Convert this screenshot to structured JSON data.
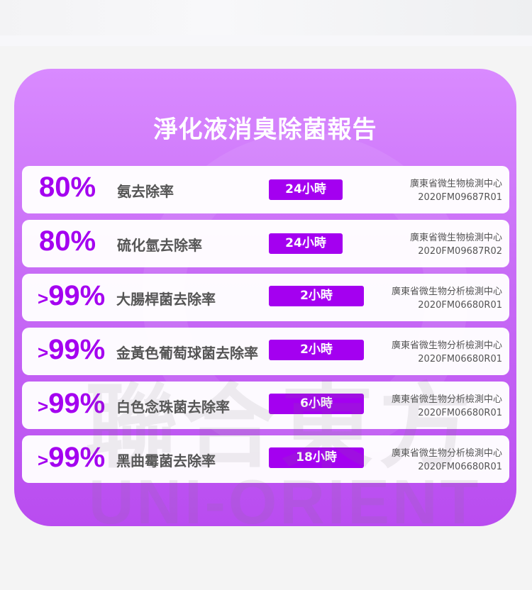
{
  "title": "淨化液消臭除菌報告",
  "watermark": {
    "cn": "聯合東方",
    "en": "UNI-ORIENT"
  },
  "accent_color": "#a400f0",
  "rows": [
    {
      "prefix": "",
      "rate": "80%",
      "name": "氨去除率",
      "time": "24小時",
      "lab": "廣東省微生物檢測中心",
      "code": "2020FM09687R01"
    },
    {
      "prefix": "",
      "rate": "80%",
      "name": "硫化氫去除率",
      "time": "24小時",
      "lab": "廣東省微生物檢測中心",
      "code": "2020FM09687R02"
    },
    {
      "prefix": ">",
      "rate": "99%",
      "name": "大腸桿菌去除率",
      "time": "2小時",
      "lab": "廣東省微生物分析檢測中心",
      "code": "2020FM06680R01"
    },
    {
      "prefix": ">",
      "rate": "99%",
      "name": "金黃色葡萄球菌去除率",
      "time": "2小時",
      "lab": "廣東省微生物分析檢測中心",
      "code": "2020FM06680R01"
    },
    {
      "prefix": ">",
      "rate": "99%",
      "name": "白色念珠菌去除率",
      "time": "6小時",
      "lab": "廣東省微生物分析檢測中心",
      "code": "2020FM06680R01"
    },
    {
      "prefix": ">",
      "rate": "99%",
      "name": "黑曲霉菌去除率",
      "time": "18小時",
      "lab": "廣東省微生物分析檢測中心",
      "code": "2020FM06680R01"
    }
  ]
}
